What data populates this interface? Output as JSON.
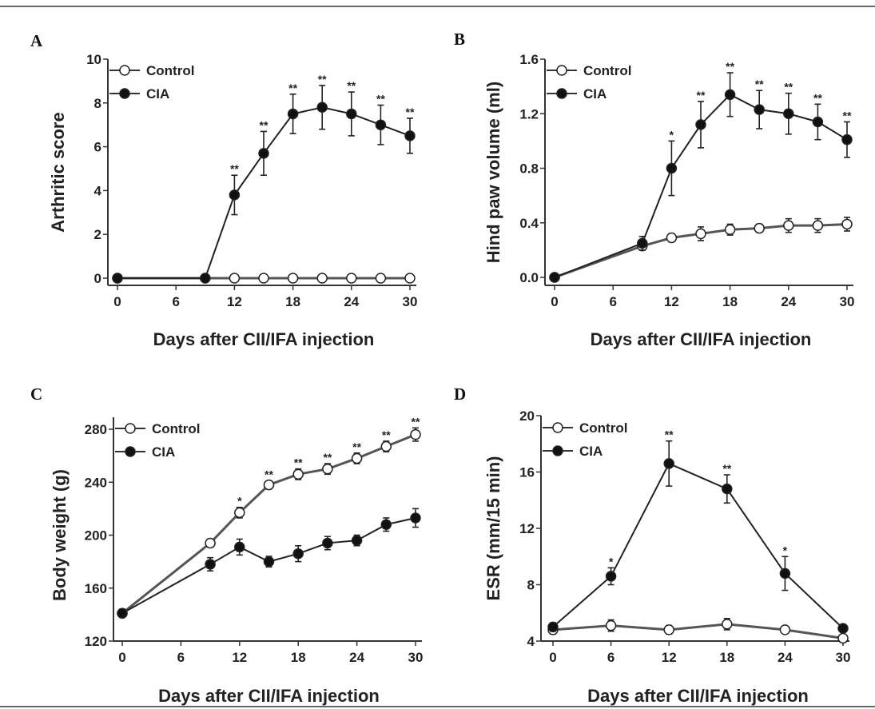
{
  "chart_data": [
    {
      "panel": "A",
      "type": "line",
      "xlabel": "Days after CII/IFA injection",
      "ylabel": "Arthritic score",
      "xlim": [
        0,
        30
      ],
      "ylim": [
        0,
        10
      ],
      "xticks": [
        "0",
        "6",
        "12",
        "18",
        "24",
        "30"
      ],
      "yticks": [
        "0",
        "2",
        "4",
        "6",
        "8",
        "10"
      ],
      "legend": "top-left",
      "series": [
        {
          "name": "Control",
          "marker": "open-circle",
          "x": [
            0,
            9,
            12,
            15,
            18,
            21,
            24,
            27,
            30
          ],
          "y": [
            0,
            0,
            0,
            0,
            0,
            0,
            0,
            0,
            0
          ],
          "err": [
            0,
            0,
            0,
            0,
            0,
            0,
            0,
            0,
            0
          ]
        },
        {
          "name": "CIA",
          "marker": "filled-circle",
          "x": [
            0,
            9,
            12,
            15,
            18,
            21,
            24,
            27,
            30
          ],
          "y": [
            0,
            0,
            3.8,
            5.7,
            7.5,
            7.8,
            7.5,
            7.0,
            6.5
          ],
          "err": [
            0,
            0,
            0.9,
            1.0,
            0.9,
            1.0,
            1.0,
            0.9,
            0.8
          ]
        }
      ],
      "significance": {
        "series": "CIA",
        "x": [
          12,
          15,
          18,
          21,
          24,
          27,
          30
        ],
        "labels": [
          "**",
          "**",
          "**",
          "**",
          "**",
          "**",
          "**"
        ]
      }
    },
    {
      "panel": "B",
      "type": "line",
      "xlabel": "Days after CII/IFA injection",
      "ylabel": "Hind paw volume (ml)",
      "xlim": [
        0,
        30
      ],
      "ylim": [
        0,
        1.6
      ],
      "xticks": [
        "0",
        "6",
        "12",
        "18",
        "24",
        "30"
      ],
      "yticks": [
        "0.0",
        "0.4",
        "0.8",
        "1.2",
        "1.6"
      ],
      "legend": "top-left",
      "series": [
        {
          "name": "Control",
          "marker": "open-circle",
          "x": [
            0,
            9,
            12,
            15,
            18,
            21,
            24,
            27,
            30
          ],
          "y": [
            0,
            0.23,
            0.29,
            0.32,
            0.35,
            0.36,
            0.38,
            0.38,
            0.39
          ],
          "err": [
            0,
            0.03,
            0.03,
            0.05,
            0.04,
            0.03,
            0.05,
            0.05,
            0.05
          ]
        },
        {
          "name": "CIA",
          "marker": "filled-circle",
          "x": [
            0,
            9,
            12,
            15,
            18,
            21,
            24,
            27,
            30
          ],
          "y": [
            0,
            0.25,
            0.8,
            1.12,
            1.34,
            1.23,
            1.2,
            1.14,
            1.01
          ],
          "err": [
            0,
            0.05,
            0.2,
            0.17,
            0.16,
            0.14,
            0.15,
            0.13,
            0.13
          ]
        }
      ],
      "significance": {
        "series": "CIA",
        "x": [
          12,
          15,
          18,
          21,
          24,
          27,
          30
        ],
        "labels": [
          "*",
          "**",
          "**",
          "**",
          "**",
          "**",
          "**"
        ]
      }
    },
    {
      "panel": "C",
      "type": "line",
      "xlabel": "Days after CII/IFA injection",
      "ylabel": "Body weight (g)",
      "xlim": [
        0,
        30
      ],
      "ylim": [
        120,
        290
      ],
      "xticks": [
        "0",
        "6",
        "12",
        "18",
        "24",
        "30"
      ],
      "yticks": [
        "120",
        "160",
        "200",
        "240",
        "280"
      ],
      "legend": "top-left",
      "series": [
        {
          "name": "Control",
          "marker": "open-circle",
          "x": [
            0,
            9,
            12,
            15,
            18,
            21,
            24,
            27,
            30
          ],
          "y": [
            141,
            194,
            217,
            238,
            246,
            250,
            258,
            267,
            276
          ],
          "err": [
            3,
            3,
            4,
            3,
            4,
            4,
            4,
            4,
            5
          ]
        },
        {
          "name": "CIA",
          "marker": "filled-circle",
          "x": [
            0,
            9,
            12,
            15,
            18,
            21,
            24,
            27,
            30
          ],
          "y": [
            141,
            178,
            191,
            180,
            186,
            194,
            196,
            208,
            213
          ],
          "err": [
            3,
            5,
            6,
            4,
            6,
            5,
            4,
            5,
            7
          ]
        }
      ],
      "significance": {
        "series": "Control",
        "x": [
          12,
          15,
          18,
          21,
          24,
          27,
          30
        ],
        "labels": [
          "*",
          "**",
          "**",
          "**",
          "**",
          "**",
          "**"
        ]
      }
    },
    {
      "panel": "D",
      "type": "line",
      "xlabel": "Days after CII/IFA injection",
      "ylabel": "ESR (mm/15 min)",
      "xlim": [
        0,
        30
      ],
      "ylim": [
        4,
        20
      ],
      "xticks": [
        "0",
        "6",
        "12",
        "18",
        "24",
        "30"
      ],
      "yticks": [
        "4",
        "8",
        "12",
        "16",
        "20"
      ],
      "legend": "top-left",
      "series": [
        {
          "name": "Control",
          "marker": "open-circle",
          "x": [
            0,
            6,
            12,
            18,
            24,
            30
          ],
          "y": [
            4.8,
            5.1,
            4.8,
            5.2,
            4.8,
            4.2
          ],
          "err": [
            0.3,
            0.4,
            0.3,
            0.4,
            0.2,
            0.1
          ]
        },
        {
          "name": "CIA",
          "marker": "filled-circle",
          "x": [
            0,
            6,
            12,
            18,
            24,
            30
          ],
          "y": [
            5.0,
            8.6,
            16.6,
            14.8,
            8.8,
            4.9
          ],
          "err": [
            0.3,
            0.6,
            1.6,
            1.0,
            1.2,
            0.2
          ]
        }
      ],
      "significance": {
        "series": "CIA",
        "x": [
          6,
          12,
          18,
          24
        ],
        "labels": [
          "*",
          "**",
          "**",
          "*"
        ]
      }
    }
  ]
}
